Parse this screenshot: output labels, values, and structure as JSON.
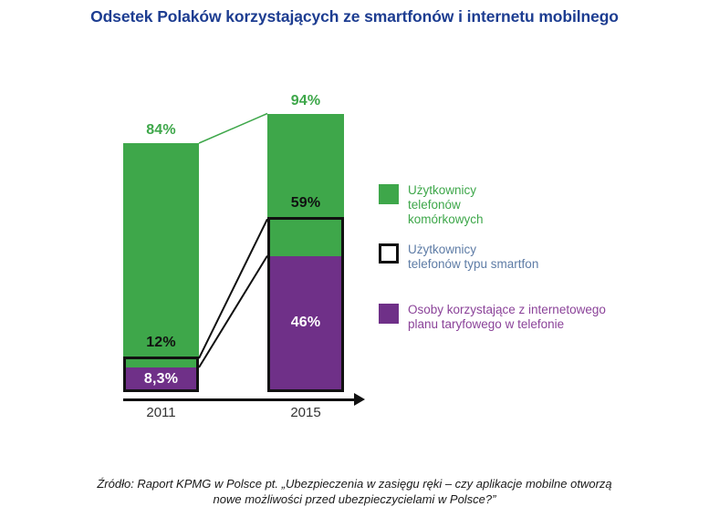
{
  "title": "Odsetek Polaków korzystających ze smartfonów i internetu mobilnego",
  "colors": {
    "title": "#1d3d91",
    "green": "#3ea74a",
    "purple": "#6f3088",
    "outline": "#111111",
    "legend_green_text": "#3ea74a",
    "legend_blue_text": "#5e7ca6",
    "legend_purple_text": "#8b4399",
    "axis_text": "#333333"
  },
  "chart_data": {
    "type": "bar",
    "subtype": "overlaid-comparison-columns-with-connectors",
    "categories": [
      "2011",
      "2015"
    ],
    "series": [
      {
        "name": "Użytkownicy telefonów komórkowych",
        "values": [
          84,
          94
        ],
        "value_labels": [
          "84%",
          "94%"
        ],
        "color": "#3ea74a",
        "style": "filled-green"
      },
      {
        "name": "Użytkownicy telefonów typu smartfon",
        "values": [
          12,
          59
        ],
        "value_labels": [
          "12%",
          "59%"
        ],
        "color": "#111111",
        "style": "black-outline-box"
      },
      {
        "name": "Osoby korzystające z internetowego planu taryfowego w telefonie",
        "values": [
          8.3,
          46
        ],
        "value_labels": [
          "8,3%",
          "46%"
        ],
        "color": "#6f3088",
        "style": "filled-purple"
      }
    ],
    "ylim": [
      0,
      100
    ],
    "grid": false,
    "y_axis_shown": false,
    "x_axis": "horizontal black arrow",
    "legend_position": "right",
    "connectors": "thin lines join the tops of matching series segments between the 2011 and 2015 columns"
  },
  "legend": {
    "items": [
      {
        "label": "Użytkownicy\ntelefonów\nkomórkowych",
        "swatch": "green-filled"
      },
      {
        "label": "Użytkownicy\ntelefonów typu smartfon",
        "swatch": "white-black-outline"
      },
      {
        "label": "Osoby korzystające z internetowego\nplanu taryfowego w telefonie",
        "swatch": "purple-filled"
      }
    ]
  },
  "source": {
    "line1": "Źródło: Raport KPMG w Polsce pt. „Ubezpieczenia w zasięgu ręki – czy aplikacje mobilne otworzą",
    "line2": "nowe możliwości przed ubezpieczycielami w Polsce?”"
  }
}
